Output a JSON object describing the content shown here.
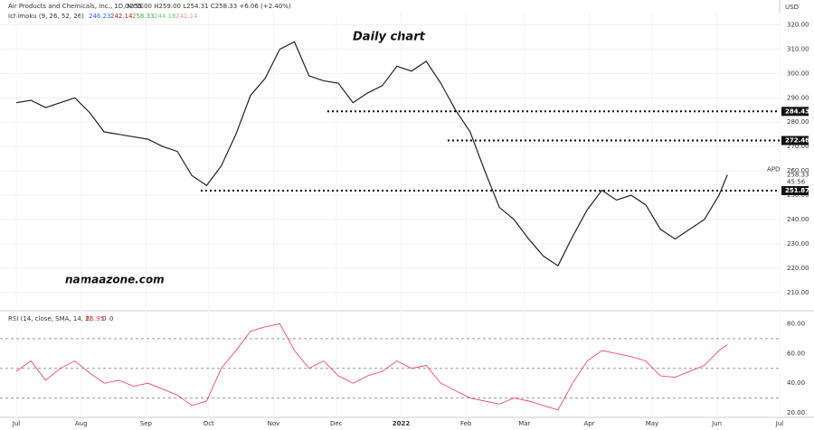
{
  "chart_data": {
    "type": "line",
    "title": "Air Products and Chemicals, Inc., 1D, NYSE",
    "ohlc_text": "O255.00 H259.00 L254.31 C258.33 +6.06 (+2.40%)",
    "indicator": "Ichimoku (9, 26, 52, 26)",
    "indicator_values": [
      {
        "value": "246.23",
        "color": "#2962ff"
      },
      {
        "value": "242.14",
        "color": "#b22222"
      },
      {
        "value": "258.33",
        "color": "#43a047"
      },
      {
        "value": "244.18",
        "color": "#81c784"
      },
      {
        "value": "242.14",
        "color": "#ef9a9a"
      }
    ],
    "annotation": "Daily chart",
    "watermark": "namaazone.com",
    "currency": "USD",
    "symbol": "APD",
    "countdown": "45:56",
    "x": [
      0,
      7,
      14,
      21,
      28,
      35,
      42,
      49,
      56,
      63,
      70,
      77,
      84,
      91,
      98,
      105,
      112,
      119,
      126,
      133,
      140,
      147,
      154,
      161,
      168,
      175,
      182,
      189,
      196,
      203,
      210,
      217,
      224,
      231,
      238,
      245,
      252,
      259,
      266,
      273,
      280,
      287,
      294,
      301,
      308,
      315,
      322,
      329,
      336,
      340
    ],
    "series": [
      {
        "name": "Close",
        "color": "#222222",
        "values": [
          288,
          289,
          286,
          288,
          290,
          284,
          276,
          275,
          274,
          273,
          270,
          268,
          258,
          254,
          262,
          275,
          291,
          298,
          310,
          313,
          299,
          297,
          296,
          288,
          292,
          295,
          303,
          301,
          305,
          296,
          285,
          276,
          260,
          245,
          240,
          232,
          225,
          221,
          233,
          244,
          252,
          248,
          250,
          246,
          236,
          232,
          236,
          240,
          250,
          258.33
        ]
      }
    ],
    "last_price": 258.33,
    "levels": [
      284.43,
      272.46,
      251.87
    ],
    "xlim": [
      -7.8,
      365
    ],
    "xticks": [
      {
        "value": 0,
        "label": "Jul"
      },
      {
        "value": 31,
        "label": "Aug"
      },
      {
        "value": 62,
        "label": "Sep"
      },
      {
        "value": 92,
        "label": "Oct"
      },
      {
        "value": 123,
        "label": "Nov"
      },
      {
        "value": 153,
        "label": "Dec"
      },
      {
        "value": 184,
        "label": "2022"
      },
      {
        "value": 215,
        "label": "Feb"
      },
      {
        "value": 243,
        "label": "Mar"
      },
      {
        "value": 274,
        "label": "Apr"
      },
      {
        "value": 304,
        "label": "May"
      },
      {
        "value": 335,
        "label": "Jun"
      },
      {
        "value": 365,
        "label": "Jul"
      }
    ],
    "ylim": [
      204,
      325
    ],
    "yticks": [
      {
        "value": 210,
        "label": "210.00"
      },
      {
        "value": 220,
        "label": "220.00"
      },
      {
        "value": 230,
        "label": "230.00"
      },
      {
        "value": 240,
        "label": "240.00"
      },
      {
        "value": 250,
        "label": "250.00"
      },
      {
        "value": 260,
        "label": "260.00"
      },
      {
        "value": 270,
        "label": "270.00"
      },
      {
        "value": 280,
        "label": "280.00"
      },
      {
        "value": 290,
        "label": "290.00"
      },
      {
        "value": 300,
        "label": "300.00"
      },
      {
        "value": 310,
        "label": "310.00"
      },
      {
        "value": 320,
        "label": "320.00"
      }
    ],
    "rsi": {
      "title": "RSI (14, close, SMA, 14, 2)",
      "last": "65.95",
      "extra": [
        "0",
        "0"
      ],
      "color": "#f23645",
      "values": [
        48,
        55,
        42,
        50,
        55,
        47,
        40,
        42,
        38,
        40,
        36,
        32,
        25,
        28,
        50,
        62,
        75,
        78,
        80,
        62,
        50,
        55,
        45,
        40,
        45,
        48,
        55,
        50,
        52,
        40,
        35,
        30,
        28,
        26,
        30,
        28,
        25,
        22,
        40,
        55,
        62,
        60,
        58,
        55,
        45,
        44,
        48,
        52,
        62,
        65.95
      ],
      "ylim": [
        17,
        87
      ],
      "yticks": [
        {
          "value": 20,
          "label": "20.00"
        },
        {
          "value": 40,
          "label": "40.00"
        },
        {
          "value": 60,
          "label": "60.00"
        },
        {
          "value": 80,
          "label": "80.00"
        }
      ],
      "bands": [
        70,
        50,
        30
      ]
    }
  }
}
